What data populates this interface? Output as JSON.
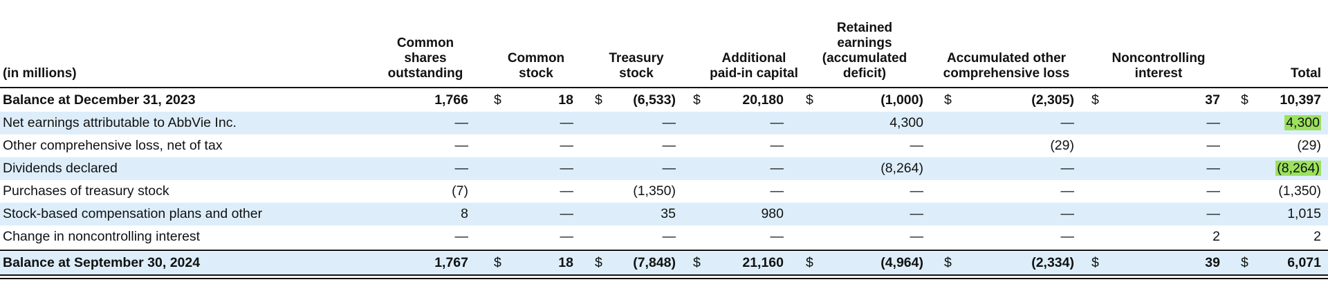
{
  "header": {
    "units_label": "(in millions)",
    "columns": [
      "Common\nshares\noutstanding",
      "Common\nstock",
      "Treasury\nstock",
      "Additional\npaid-in capital",
      "Retained\nearnings\n(accumulated\ndeficit)",
      "Accumulated other\ncomprehensive loss",
      "Noncontrolling\ninterest",
      "Total"
    ]
  },
  "rows": [
    {
      "label": "Balance at December 31, 2023",
      "bold": true,
      "shade": false,
      "dollars": true,
      "values": [
        "1,766",
        "18",
        "(6,533)",
        "20,180",
        "(1,000)",
        "(2,305)",
        "37",
        "10,397"
      ]
    },
    {
      "label": "Net earnings attributable to AbbVie Inc.",
      "bold": false,
      "shade": true,
      "dollars": false,
      "values": [
        "—",
        "—",
        "—",
        "—",
        "4,300",
        "—",
        "—",
        "4,300"
      ],
      "highlight_total": true
    },
    {
      "label": "Other comprehensive loss, net of tax",
      "bold": false,
      "shade": false,
      "dollars": false,
      "values": [
        "—",
        "—",
        "—",
        "—",
        "—",
        "(29)",
        "—",
        "(29)"
      ]
    },
    {
      "label": "Dividends declared",
      "bold": false,
      "shade": true,
      "dollars": false,
      "values": [
        "—",
        "—",
        "—",
        "—",
        "(8,264)",
        "—",
        "—",
        "(8,264)"
      ],
      "highlight_total": true
    },
    {
      "label": "Purchases of treasury stock",
      "bold": false,
      "shade": false,
      "dollars": false,
      "values": [
        "(7)",
        "—",
        "(1,350)",
        "—",
        "—",
        "—",
        "—",
        "(1,350)"
      ]
    },
    {
      "label": "Stock-based compensation plans and other",
      "bold": false,
      "shade": true,
      "dollars": false,
      "values": [
        "8",
        "—",
        "35",
        "980",
        "—",
        "—",
        "—",
        "1,015"
      ]
    },
    {
      "label": "Change in noncontrolling interest",
      "bold": false,
      "shade": false,
      "dollars": false,
      "values": [
        "—",
        "—",
        "—",
        "—",
        "—",
        "—",
        "2",
        "2"
      ]
    },
    {
      "label": "Balance at September 30, 2024",
      "bold": true,
      "shade": true,
      "dollars": true,
      "values": [
        "1,767",
        "18",
        "(7,848)",
        "21,160",
        "(4,964)",
        "(2,334)",
        "39",
        "6,071"
      ]
    }
  ],
  "currency_symbol": "$",
  "colors": {
    "row_shade": "#ddeefa",
    "highlight": "#9be15d",
    "rule": "#111111"
  }
}
